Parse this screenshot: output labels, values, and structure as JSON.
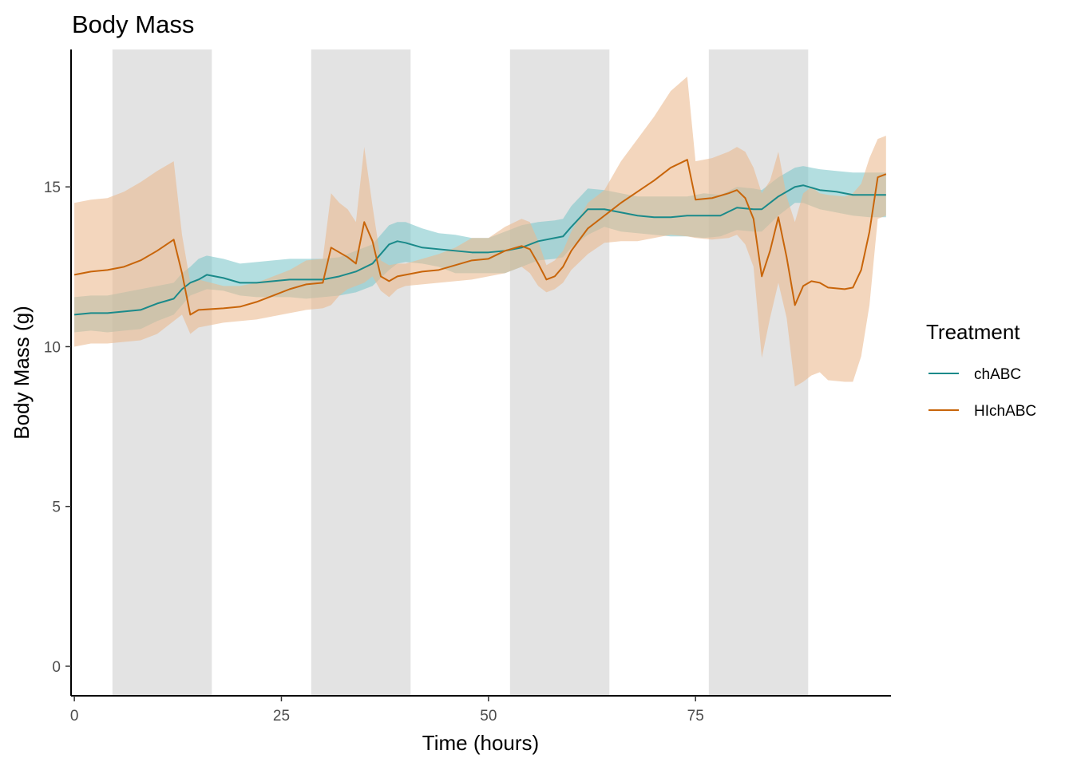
{
  "chart_data": {
    "type": "line",
    "title": "Body Mass",
    "xlabel": "Time (hours)",
    "ylabel": "Body Mass (g)",
    "xlim": [
      -0.3,
      98.5
    ],
    "ylim": [
      -0.9,
      19.3
    ],
    "x_ticks": [
      0,
      25,
      50,
      75
    ],
    "y_ticks": [
      0,
      5,
      10,
      15
    ],
    "x_tick_labels": [
      "0",
      "25",
      "50",
      "75"
    ],
    "y_tick_labels": [
      "0",
      "5",
      "10",
      "15"
    ],
    "grid": false,
    "legend": {
      "title": "Treatment",
      "position": "right"
    },
    "shaded_periods": [
      [
        4.6,
        16.6
      ],
      [
        28.6,
        40.6
      ],
      [
        52.6,
        64.6
      ],
      [
        76.6,
        88.6
      ]
    ],
    "series": [
      {
        "name": "chABC",
        "color": "#1a8a8a",
        "band_color": "#7cc6c9",
        "points": [
          [
            0,
            11.0,
            10.45,
            11.55
          ],
          [
            2,
            11.05,
            10.5,
            11.6
          ],
          [
            4,
            11.05,
            10.45,
            11.6
          ],
          [
            6,
            11.1,
            10.5,
            11.7
          ],
          [
            8,
            11.15,
            10.55,
            11.8
          ],
          [
            10,
            11.35,
            10.8,
            11.9
          ],
          [
            12,
            11.5,
            11.0,
            12.0
          ],
          [
            13,
            11.8,
            11.3,
            12.3
          ],
          [
            14,
            12.0,
            11.6,
            12.5
          ],
          [
            15,
            12.1,
            11.7,
            12.75
          ],
          [
            16,
            12.25,
            11.8,
            12.85
          ],
          [
            18,
            12.15,
            11.75,
            12.75
          ],
          [
            20,
            12.0,
            11.6,
            12.6
          ],
          [
            22,
            12.0,
            11.55,
            12.65
          ],
          [
            24,
            12.05,
            11.55,
            12.7
          ],
          [
            26,
            12.1,
            11.55,
            12.75
          ],
          [
            28,
            12.1,
            11.5,
            12.75
          ],
          [
            30,
            12.1,
            11.55,
            12.75
          ],
          [
            32,
            12.2,
            11.6,
            12.8
          ],
          [
            34,
            12.35,
            11.7,
            13.0
          ],
          [
            36,
            12.6,
            11.9,
            13.2
          ],
          [
            38,
            13.2,
            12.4,
            13.8
          ],
          [
            39,
            13.3,
            12.6,
            13.9
          ],
          [
            40,
            13.25,
            12.65,
            13.9
          ],
          [
            42,
            13.1,
            12.6,
            13.7
          ],
          [
            44,
            13.05,
            12.5,
            13.55
          ],
          [
            46,
            13.0,
            12.3,
            13.5
          ],
          [
            48,
            12.95,
            12.3,
            13.4
          ],
          [
            50,
            12.95,
            12.3,
            13.4
          ],
          [
            52,
            13.0,
            12.3,
            13.6
          ],
          [
            54,
            13.1,
            12.5,
            13.8
          ],
          [
            56,
            13.3,
            12.7,
            13.9
          ],
          [
            58,
            13.4,
            12.75,
            13.95
          ],
          [
            59,
            13.45,
            12.8,
            14.0
          ],
          [
            60,
            13.75,
            13.1,
            14.4
          ],
          [
            62,
            14.3,
            13.5,
            14.95
          ],
          [
            64,
            14.3,
            13.75,
            14.9
          ],
          [
            66,
            14.2,
            13.6,
            14.8
          ],
          [
            68,
            14.1,
            13.55,
            14.7
          ],
          [
            70,
            14.05,
            13.5,
            14.7
          ],
          [
            72,
            14.05,
            13.45,
            14.7
          ],
          [
            74,
            14.1,
            13.45,
            14.7
          ],
          [
            76,
            14.1,
            13.4,
            14.8
          ],
          [
            78,
            14.1,
            13.45,
            14.75
          ],
          [
            80,
            14.35,
            13.65,
            15.0
          ],
          [
            82,
            14.3,
            13.6,
            14.95
          ],
          [
            83,
            14.3,
            13.6,
            14.9
          ],
          [
            85,
            14.7,
            14.1,
            15.3
          ],
          [
            87,
            15.0,
            14.5,
            15.6
          ],
          [
            88,
            15.05,
            14.5,
            15.65
          ],
          [
            90,
            14.9,
            14.3,
            15.55
          ],
          [
            92,
            14.85,
            14.2,
            15.5
          ],
          [
            94,
            14.75,
            14.1,
            15.45
          ],
          [
            96,
            14.75,
            14.05,
            15.45
          ],
          [
            98,
            14.75,
            14.05,
            15.45
          ]
        ]
      },
      {
        "name": "HIchABC",
        "color": "#c8650a",
        "band_color": "#eab98e",
        "points": [
          [
            0,
            12.25,
            10.0,
            14.5
          ],
          [
            2,
            12.35,
            10.1,
            14.6
          ],
          [
            4,
            12.4,
            10.1,
            14.65
          ],
          [
            6,
            12.5,
            10.15,
            14.85
          ],
          [
            8,
            12.7,
            10.2,
            15.15
          ],
          [
            10,
            13.0,
            10.4,
            15.5
          ],
          [
            12,
            13.35,
            10.8,
            15.8
          ],
          [
            13,
            12.3,
            11.0,
            13.5
          ],
          [
            14,
            11.0,
            10.4,
            12.0
          ],
          [
            15,
            11.15,
            10.6,
            12.1
          ],
          [
            18,
            11.2,
            10.75,
            11.9
          ],
          [
            20,
            11.25,
            10.8,
            11.9
          ],
          [
            22,
            11.4,
            10.85,
            12.0
          ],
          [
            24,
            11.6,
            10.95,
            12.2
          ],
          [
            26,
            11.8,
            11.05,
            12.4
          ],
          [
            28,
            11.95,
            11.15,
            12.7
          ],
          [
            30,
            12.0,
            11.2,
            12.75
          ],
          [
            31,
            13.1,
            11.3,
            14.8
          ],
          [
            32,
            12.95,
            11.6,
            14.5
          ],
          [
            33,
            12.8,
            11.8,
            14.3
          ],
          [
            34,
            12.6,
            11.9,
            13.9
          ],
          [
            35,
            13.9,
            12.0,
            16.25
          ],
          [
            36,
            13.3,
            12.2,
            14.4
          ],
          [
            37,
            12.2,
            11.75,
            12.7
          ],
          [
            38,
            12.05,
            11.55,
            12.55
          ],
          [
            39,
            12.2,
            11.8,
            12.6
          ],
          [
            40,
            12.25,
            11.9,
            12.6
          ],
          [
            42,
            12.35,
            11.95,
            12.75
          ],
          [
            44,
            12.4,
            12.0,
            12.9
          ],
          [
            46,
            12.55,
            12.05,
            13.1
          ],
          [
            48,
            12.7,
            12.1,
            13.4
          ],
          [
            50,
            12.75,
            12.2,
            13.4
          ],
          [
            52,
            13.0,
            12.3,
            13.75
          ],
          [
            54,
            13.15,
            12.5,
            14.0
          ],
          [
            55,
            13.05,
            12.3,
            13.9
          ],
          [
            56,
            12.6,
            11.9,
            13.3
          ],
          [
            57,
            12.1,
            11.7,
            12.55
          ],
          [
            58,
            12.2,
            11.8,
            12.7
          ],
          [
            59,
            12.5,
            12.0,
            13.0
          ],
          [
            60,
            13.0,
            12.4,
            13.6
          ],
          [
            62,
            13.7,
            12.9,
            14.5
          ],
          [
            64,
            14.1,
            13.25,
            14.9
          ],
          [
            66,
            14.5,
            13.3,
            15.8
          ],
          [
            68,
            14.85,
            13.3,
            16.5
          ],
          [
            70,
            15.2,
            13.4,
            17.2
          ],
          [
            72,
            15.6,
            13.5,
            18.0
          ],
          [
            74,
            15.85,
            13.45,
            18.45
          ],
          [
            75,
            14.6,
            13.4,
            15.8
          ],
          [
            77,
            14.65,
            13.35,
            15.9
          ],
          [
            79,
            14.8,
            13.4,
            16.1
          ],
          [
            80,
            14.9,
            13.5,
            16.25
          ],
          [
            81,
            14.65,
            13.2,
            16.1
          ],
          [
            82,
            14.0,
            12.5,
            15.6
          ],
          [
            83,
            12.2,
            9.65,
            14.8
          ],
          [
            84,
            13.0,
            10.9,
            15.2
          ],
          [
            85,
            14.05,
            12.0,
            16.1
          ],
          [
            86,
            12.8,
            10.9,
            14.7
          ],
          [
            87,
            11.3,
            8.75,
            13.9
          ],
          [
            88,
            11.9,
            8.9,
            14.8
          ],
          [
            89,
            12.05,
            9.1,
            15.0
          ],
          [
            90,
            12.0,
            9.2,
            14.8
          ],
          [
            91,
            11.85,
            8.95,
            14.75
          ],
          [
            93,
            11.8,
            8.9,
            14.7
          ],
          [
            94,
            11.85,
            8.9,
            14.8
          ],
          [
            95,
            12.4,
            9.7,
            15.1
          ],
          [
            96,
            13.6,
            11.3,
            15.9
          ],
          [
            97,
            15.3,
            14.0,
            16.5
          ],
          [
            98,
            15.4,
            14.1,
            16.6
          ]
        ]
      }
    ]
  }
}
